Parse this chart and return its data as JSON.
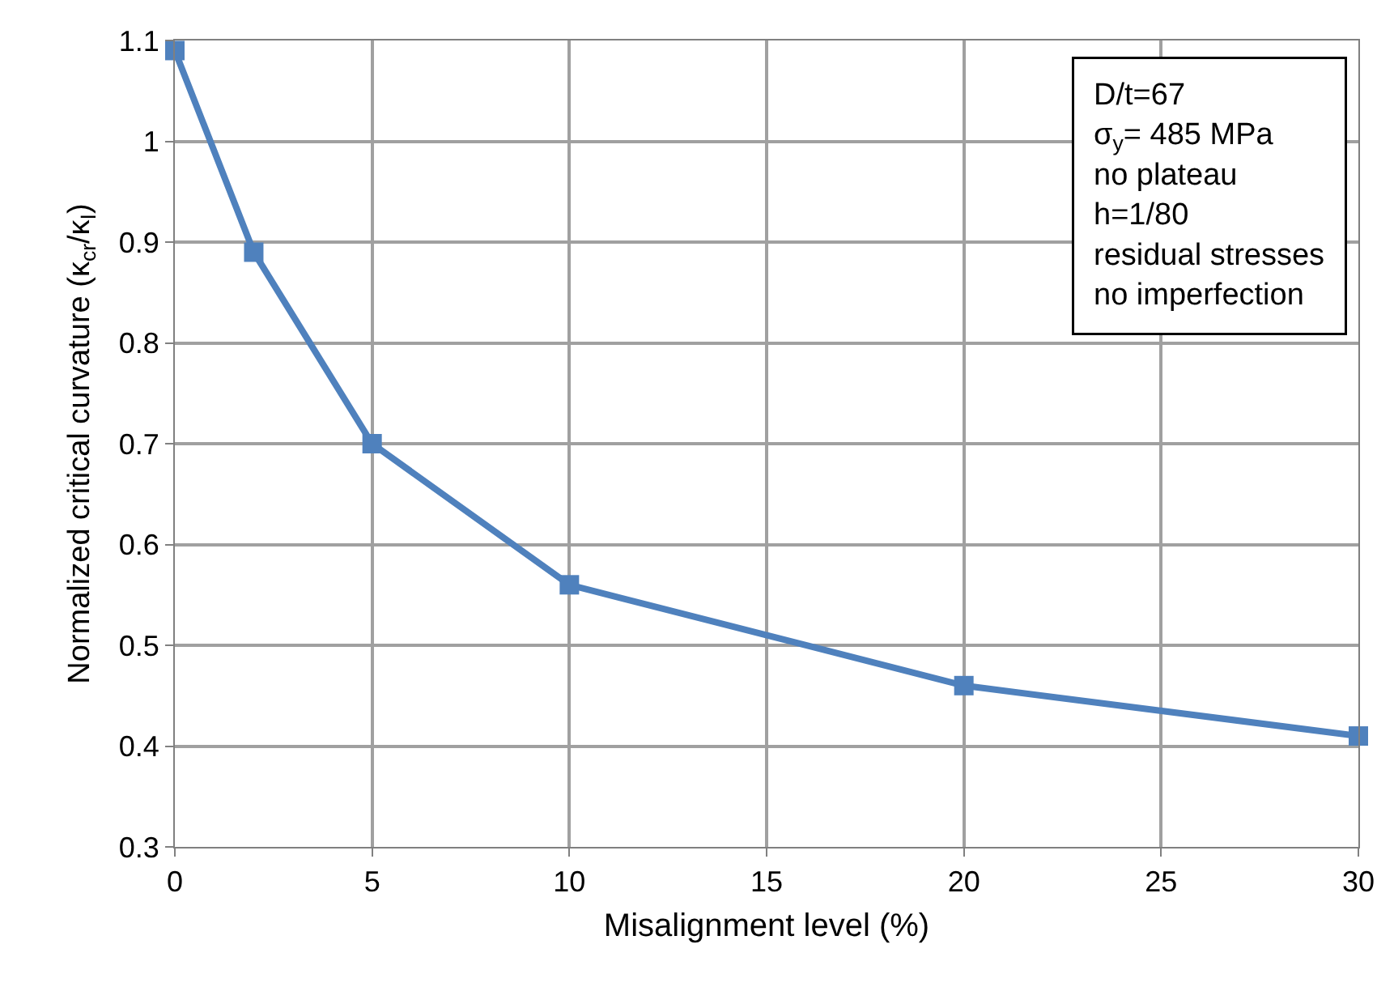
{
  "chart_data": {
    "type": "line",
    "xlabel": "Misalignment level (%)",
    "ylabel": "Normalized critical curvature (κ$_{cr}$/κ$_{I}$)",
    "x": [
      0,
      2,
      5,
      10,
      20,
      30
    ],
    "series": [
      {
        "color": "#4f81bd",
        "values": [
          1.09,
          0.89,
          0.7,
          0.56,
          0.46,
          0.41
        ]
      }
    ],
    "xlim": [
      0,
      30
    ],
    "xticks": [
      0,
      5,
      10,
      15,
      20,
      25,
      30
    ],
    "ylim": [
      0.3,
      1.1
    ],
    "yticks": [
      0.3,
      0.4,
      0.5,
      0.6,
      0.7,
      0.8,
      0.9,
      1,
      1.1
    ],
    "grid": true,
    "marker": "square",
    "line_style": "solid",
    "annotations": [
      "D/t=67",
      "σ$_{y}$= 485 MPa",
      "no plateau",
      "h=1/80",
      "residual stresses",
      "no imperfection"
    ]
  }
}
